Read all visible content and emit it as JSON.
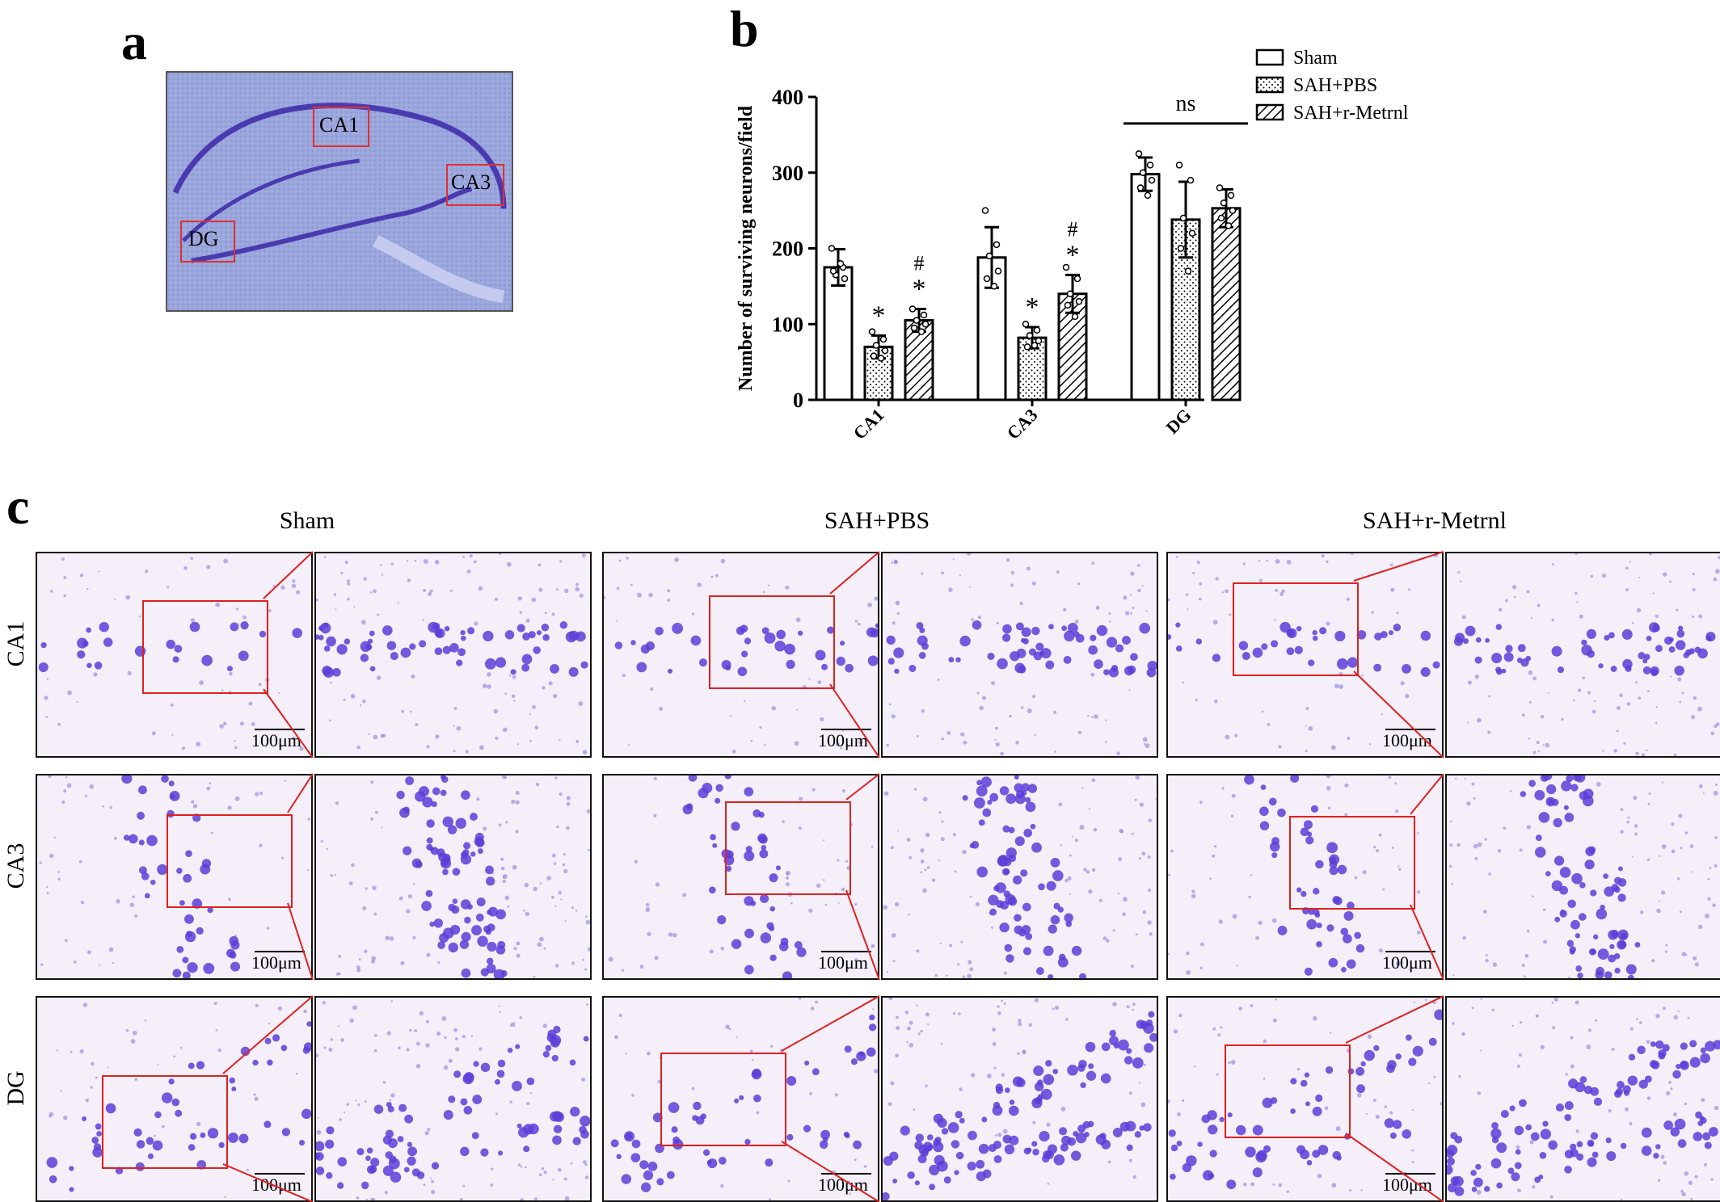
{
  "panels": {
    "a": {
      "letter": "a",
      "regions": [
        "CA1",
        "CA3",
        "DG"
      ]
    },
    "b": {
      "letter": "b"
    },
    "c": {
      "letter": "c",
      "columns": [
        "Sham",
        "SAH+PBS",
        "SAH+r-Metrnl"
      ],
      "rows": [
        "CA1",
        "CA3",
        "DG"
      ],
      "scalebar": "100μm"
    }
  },
  "chart_data": {
    "type": "bar",
    "categories": [
      "CA1",
      "CA3",
      "DG"
    ],
    "ylabel": "Number of surviving neurons/field",
    "xlabel": "",
    "ylim": [
      0,
      400
    ],
    "yticks": [
      0,
      100,
      200,
      300,
      400
    ],
    "legend_position": "top-right",
    "series": [
      {
        "name": "Sham",
        "pattern": "open",
        "values": [
          175,
          188,
          298
        ],
        "errors": [
          24,
          40,
          22
        ],
        "points": [
          [
            200,
            175,
            165,
            160,
            170,
            180
          ],
          [
            250,
            205,
            190,
            170,
            160,
            150
          ],
          [
            325,
            310,
            300,
            290,
            280,
            270
          ]
        ]
      },
      {
        "name": "SAH+PBS",
        "pattern": "dotted",
        "values": [
          70,
          82,
          238
        ],
        "errors": [
          15,
          14,
          50
        ],
        "points": [
          [
            90,
            80,
            72,
            65,
            58,
            55
          ],
          [
            100,
            92,
            85,
            78,
            70,
            72
          ],
          [
            310,
            290,
            240,
            220,
            200,
            170
          ]
        ]
      },
      {
        "name": "SAH+r-Metrnl",
        "pattern": "hatched",
        "values": [
          105,
          140,
          253
        ],
        "errors": [
          15,
          25,
          25
        ],
        "points": [
          [
            120,
            112,
            105,
            100,
            95,
            90
          ],
          [
            175,
            160,
            140,
            130,
            125,
            110
          ],
          [
            280,
            270,
            260,
            250,
            240,
            230
          ]
        ]
      }
    ],
    "significance": {
      "SAH+PBS": [
        "*",
        "*",
        ""
      ],
      "SAH+r-Metrnl": [
        "#\n*",
        "#\n*",
        ""
      ],
      "DG_bracket": "ns"
    }
  }
}
